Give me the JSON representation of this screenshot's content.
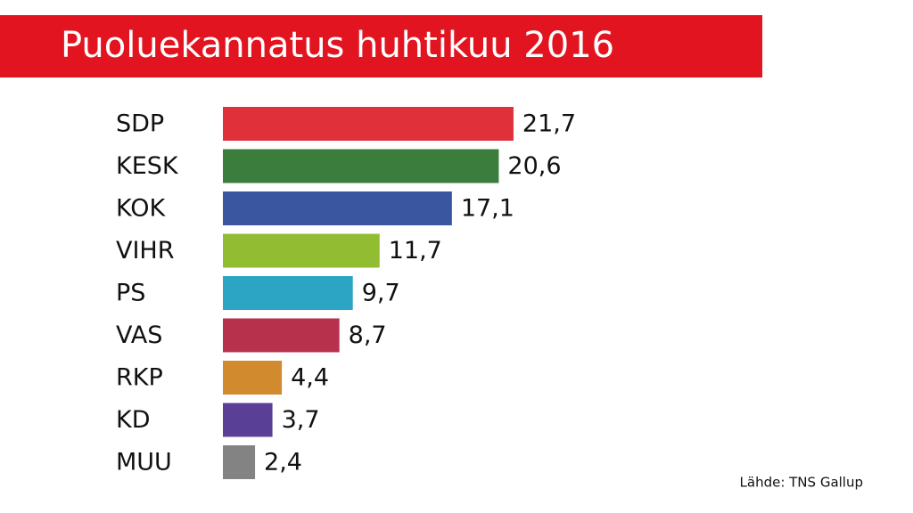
{
  "chart_data": {
    "type": "bar",
    "orientation": "horizontal",
    "title": "Puoluekannatus huhtikuu 2016",
    "categories": [
      "SDP",
      "KESK",
      "KOK",
      "VIHR",
      "PS",
      "VAS",
      "RKP",
      "KD",
      "MUU"
    ],
    "values": [
      21.7,
      20.6,
      17.1,
      11.7,
      9.7,
      8.7,
      4.4,
      3.7,
      2.4
    ],
    "value_labels": [
      "21,7",
      "20,6",
      "17,1",
      "11,7",
      "9,7",
      "8,7",
      "4,4",
      "3,7",
      "2,4"
    ],
    "colors": [
      "#e0303a",
      "#3a7d3c",
      "#3a56a0",
      "#92bd32",
      "#2ba5c3",
      "#b7304c",
      "#d28a2e",
      "#5a3f97",
      "#838383"
    ],
    "source": "Lähde: TNS Gallup"
  }
}
